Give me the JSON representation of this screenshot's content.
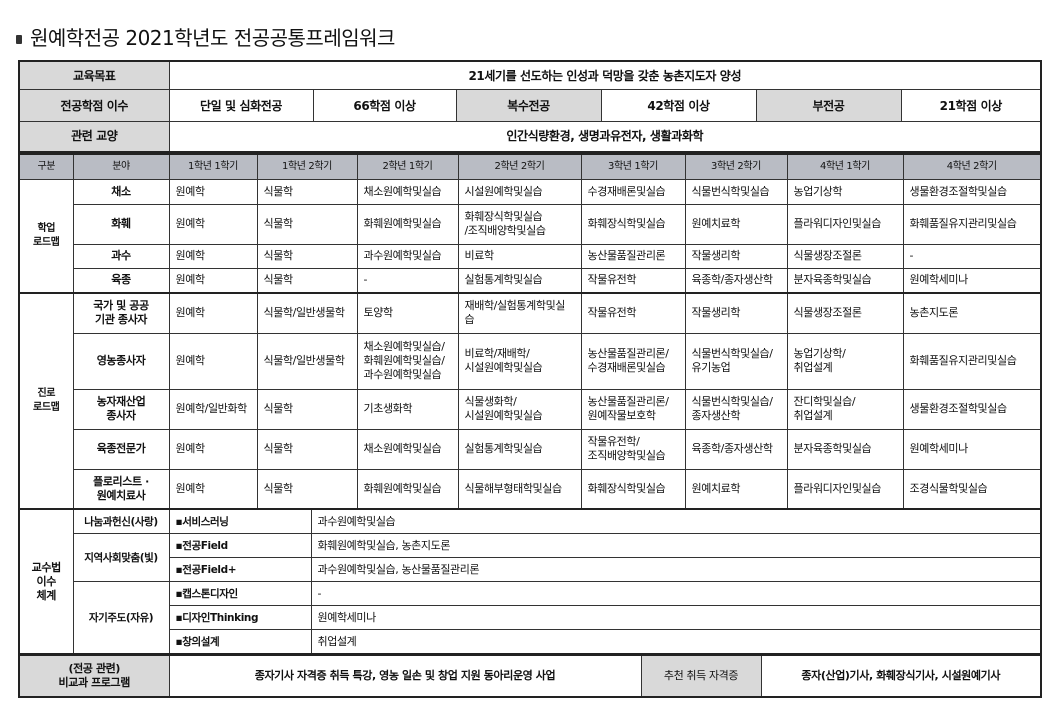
{
  "title": "원예학전공 2021학년도 전공공통프레임워크",
  "goal": {
    "label": "교육목표",
    "value": "21세기를 선도하는 인성과 덕망을 갖춘 농촌지도자 양성"
  },
  "credits": {
    "label": "전공학점 이수",
    "items": [
      {
        "type": "단일 및 심화전공",
        "value": "66학점 이상"
      },
      {
        "type": "복수전공",
        "value": "42학점 이상"
      },
      {
        "type": "부전공",
        "value": "21학점 이상"
      }
    ]
  },
  "liberal": {
    "label": "관련 교양",
    "value": "인간식량환경, 생명과유전자, 생활과화학"
  },
  "header": [
    "구분",
    "분야",
    "1학년 1학기",
    "1학년 2학기",
    "2학년 1학기",
    "2학년 2학기",
    "3학년 1학기",
    "3학년 2학기",
    "4학년 1학기",
    "4학년 2학기"
  ],
  "groups": [
    {
      "name": "학업\n로드맵",
      "rows": [
        {
          "field": "채소",
          "cells": [
            "원예학",
            "식물학",
            "채소원예학및실습",
            "시설원예학및실습",
            "수경재배론및실습",
            "식물번식학및실습",
            "농업기상학",
            "생물환경조절학및실습"
          ]
        },
        {
          "field": "화훼",
          "cells": [
            "원예학",
            "식물학",
            "화훼원예학및실습",
            "화훼장식학및실습\n/조직배양학및실습",
            "화훼장식학및실습",
            "원예치료학",
            "플라워디자인및실습",
            "화훼품질유지관리및실습"
          ]
        },
        {
          "field": "과수",
          "cells": [
            "원예학",
            "식물학",
            "과수원예학및실습",
            "비료학",
            "농산물품질관리론",
            "작물생리학",
            "식물생장조절론",
            "-"
          ]
        },
        {
          "field": "육종",
          "cells": [
            "원예학",
            "식물학",
            "-",
            "실험통계학및실습",
            "작물유전학",
            "육종학/종자생산학",
            "분자육종학및실습",
            "원예학세미나"
          ]
        }
      ]
    },
    {
      "name": "진로\n로드맵",
      "rows": [
        {
          "field": "국가 및 공공\n기관 종사자",
          "cells": [
            "원예학",
            "식물학/일반생물학",
            "토양학",
            "재배학/실험통계학및실습",
            "작물유전학",
            "작물생리학",
            "식물생장조절론",
            "농촌지도론"
          ]
        },
        {
          "field": "영농종사자",
          "cells": [
            "원예학",
            "식물학/일반생물학",
            "채소원예학및실습/\n화훼원예학및실습/\n과수원예학및실습",
            "비료학/재배학/\n시설원예학및실습",
            "농산물품질관리론/\n수경재배론및실습",
            "식물번식학및실습/\n유기농업",
            "농업기상학/\n취업설계",
            "화훼품질유지관리및실습"
          ]
        },
        {
          "field": "농자재산업\n종사자",
          "cells": [
            "원예학/일반화학",
            "식물학",
            "기초생화학",
            "식물생화학/\n시설원예학및실습",
            "농산물품질관리론/\n원예작물보호학",
            "식물번식학및실습/\n종자생산학",
            "잔디학및실습/\n취업설계",
            "생물환경조절학및실습"
          ]
        },
        {
          "field": "육종전문가",
          "cells": [
            "원예학",
            "식물학",
            "채소원예학및실습",
            "실험통계학및실습",
            "작물유전학/\n조직배양학및실습",
            "육종학/종자생산학",
            "분자육종학및실습",
            "원예학세미나"
          ]
        },
        {
          "field": "플로리스트 ·\n원예치료사",
          "cells": [
            "원예학",
            "식물학",
            "화훼원예학및실습",
            "식물해부형태학및실습",
            "화훼장식학및실습",
            "원예치료학",
            "플라워디자인및실습",
            "조경식물학및실습"
          ]
        }
      ]
    }
  ],
  "teaching": {
    "label": "교수법\n이수\n체계",
    "groups": [
      {
        "name": "나눔과헌신(사랑)",
        "items": [
          {
            "method": "▪서비스러닝",
            "courses": "과수원예학및실습"
          }
        ]
      },
      {
        "name": "지역사회맞춤(빛)",
        "items": [
          {
            "method": "▪전공Field",
            "courses": "화훼원예학및실습, 농촌지도론"
          },
          {
            "method": "▪전공Field+",
            "courses": "과수원예학및실습, 농산물품질관리론"
          }
        ]
      },
      {
        "name": "자기주도(자유)",
        "items": [
          {
            "method": "▪캡스톤디자인",
            "courses": "-"
          },
          {
            "method": "▪디자인Thinking",
            "courses": "원예학세미나"
          },
          {
            "method": "▪창의설계",
            "courses": "취업설계"
          }
        ]
      }
    ]
  },
  "extra": {
    "label": "(전공 관련)\n비교과 프로그램",
    "value": "종자기사 자격증 취득 특강, 영농 일손 및 창업 지원 동아리운영 사업",
    "cert_label": "추천 취득 자격증",
    "cert_value": "종자(산업)기사, 화훼장식기사, 시설원예기사"
  }
}
